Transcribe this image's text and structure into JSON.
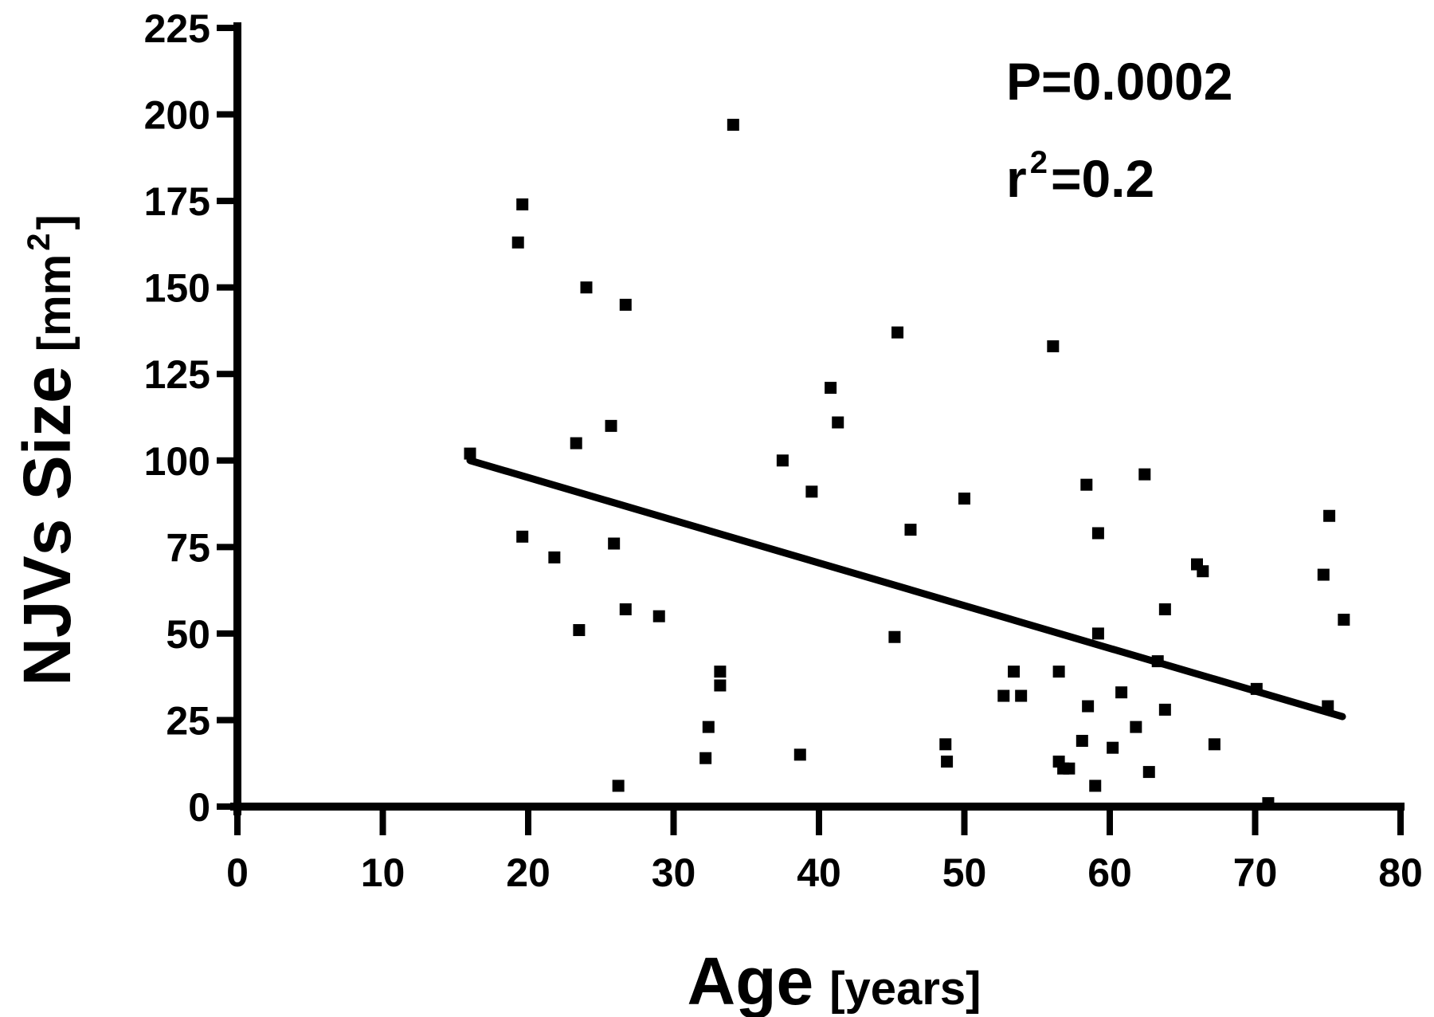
{
  "chart_data": {
    "type": "scatter",
    "xlabel": "Age",
    "xlabel_unit": "[years]",
    "ylabel": "NJVs Size",
    "ylabel_unit_open": "[mm",
    "ylabel_unit_sup": "2",
    "ylabel_unit_close": "]",
    "xlim": [
      0,
      80
    ],
    "ylim": [
      0,
      225
    ],
    "x_ticks": [
      "0",
      "10",
      "20",
      "30",
      "40",
      "50",
      "60",
      "70",
      "80"
    ],
    "y_ticks": [
      "0",
      "25",
      "50",
      "75",
      "100",
      "125",
      "150",
      "175",
      "200",
      "225"
    ],
    "grid": false,
    "annotations": {
      "p_value": "P=0.0002",
      "r2_base": "r",
      "r2_sup": "2",
      "r2_value": "=0.2"
    },
    "points": [
      {
        "x": 16,
        "y": 102
      },
      {
        "x": 19.3,
        "y": 163
      },
      {
        "x": 19.6,
        "y": 174
      },
      {
        "x": 19.6,
        "y": 78
      },
      {
        "x": 21.8,
        "y": 72
      },
      {
        "x": 23.3,
        "y": 105
      },
      {
        "x": 23.5,
        "y": 51
      },
      {
        "x": 24,
        "y": 150
      },
      {
        "x": 25.7,
        "y": 110
      },
      {
        "x": 25.9,
        "y": 76
      },
      {
        "x": 26.2,
        "y": 6
      },
      {
        "x": 26.7,
        "y": 145
      },
      {
        "x": 26.7,
        "y": 57
      },
      {
        "x": 29,
        "y": 55
      },
      {
        "x": 32.2,
        "y": 14
      },
      {
        "x": 32.4,
        "y": 23
      },
      {
        "x": 33.2,
        "y": 39
      },
      {
        "x": 33.2,
        "y": 35
      },
      {
        "x": 34.1,
        "y": 197
      },
      {
        "x": 37.5,
        "y": 100
      },
      {
        "x": 38.7,
        "y": 15
      },
      {
        "x": 39.5,
        "y": 91
      },
      {
        "x": 40.8,
        "y": 121
      },
      {
        "x": 41.3,
        "y": 111
      },
      {
        "x": 45.2,
        "y": 49
      },
      {
        "x": 45.4,
        "y": 137
      },
      {
        "x": 46.3,
        "y": 80
      },
      {
        "x": 48.7,
        "y": 18
      },
      {
        "x": 48.8,
        "y": 13
      },
      {
        "x": 50,
        "y": 89
      },
      {
        "x": 52.7,
        "y": 32
      },
      {
        "x": 53.4,
        "y": 39
      },
      {
        "x": 53.9,
        "y": 32
      },
      {
        "x": 56.1,
        "y": 133
      },
      {
        "x": 56.5,
        "y": 39
      },
      {
        "x": 56.5,
        "y": 13
      },
      {
        "x": 56.8,
        "y": 11
      },
      {
        "x": 57.2,
        "y": 11
      },
      {
        "x": 58.1,
        "y": 19
      },
      {
        "x": 58.4,
        "y": 93
      },
      {
        "x": 58.5,
        "y": 29
      },
      {
        "x": 59,
        "y": 6
      },
      {
        "x": 59.2,
        "y": 50
      },
      {
        "x": 59.2,
        "y": 79
      },
      {
        "x": 60.2,
        "y": 17
      },
      {
        "x": 60.8,
        "y": 33
      },
      {
        "x": 61.8,
        "y": 23
      },
      {
        "x": 62.4,
        "y": 96
      },
      {
        "x": 62.7,
        "y": 10
      },
      {
        "x": 63.3,
        "y": 42
      },
      {
        "x": 63.8,
        "y": 57
      },
      {
        "x": 63.8,
        "y": 28
      },
      {
        "x": 66,
        "y": 70
      },
      {
        "x": 66.4,
        "y": 68
      },
      {
        "x": 67.2,
        "y": 18
      },
      {
        "x": 70.1,
        "y": 34
      },
      {
        "x": 70.9,
        "y": 1
      },
      {
        "x": 74.7,
        "y": 67
      },
      {
        "x": 75,
        "y": 29
      },
      {
        "x": 75.1,
        "y": 84
      },
      {
        "x": 76.1,
        "y": 54
      }
    ],
    "regression_line": {
      "x1": 16,
      "y1": 100,
      "x2": 76,
      "y2": 26
    }
  }
}
